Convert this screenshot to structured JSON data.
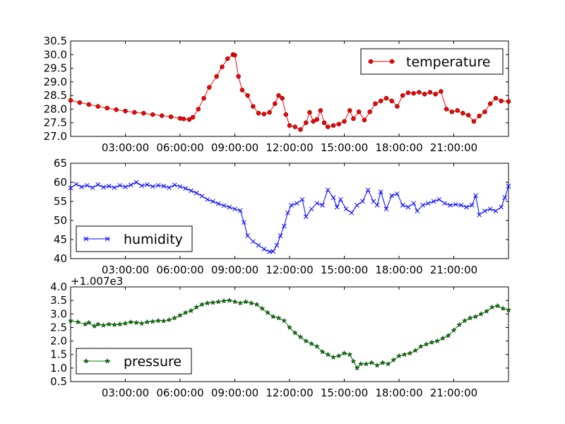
{
  "chart_data": [
    {
      "type": "line",
      "x_ticks": [
        "03:00:00",
        "06:00:00",
        "09:00:00",
        "12:00:00",
        "15:00:00",
        "18:00:00",
        "21:00:00"
      ],
      "x_tick_hours": [
        3,
        6,
        9,
        12,
        15,
        18,
        21
      ],
      "x_range_hours": [
        0,
        24
      ],
      "ylim": [
        27.0,
        30.5
      ],
      "y_ticks": [
        "27.0",
        "27.5",
        "28.0",
        "28.5",
        "29.0",
        "29.5",
        "30.0",
        "30.5"
      ],
      "legend_position": "upper-right",
      "series": [
        {
          "name": "temperature",
          "color": "#ff0000",
          "marker": "circle",
          "points": [
            [
              0.0,
              28.32
            ],
            [
              0.5,
              28.24
            ],
            [
              1.0,
              28.17
            ],
            [
              1.5,
              28.1
            ],
            [
              2.0,
              28.04
            ],
            [
              2.5,
              27.98
            ],
            [
              3.0,
              27.93
            ],
            [
              3.5,
              27.88
            ],
            [
              4.0,
              27.85
            ],
            [
              4.5,
              27.8
            ],
            [
              5.0,
              27.76
            ],
            [
              5.5,
              27.72
            ],
            [
              6.0,
              27.66
            ],
            [
              6.2,
              27.64
            ],
            [
              6.5,
              27.62
            ],
            [
              6.7,
              27.7
            ],
            [
              7.0,
              28.0
            ],
            [
              7.3,
              28.4
            ],
            [
              7.6,
              28.8
            ],
            [
              8.0,
              29.2
            ],
            [
              8.3,
              29.55
            ],
            [
              8.6,
              29.85
            ],
            [
              8.9,
              30.0
            ],
            [
              9.0,
              29.98
            ],
            [
              9.2,
              29.2
            ],
            [
              9.4,
              28.7
            ],
            [
              9.7,
              28.5
            ],
            [
              10.0,
              28.1
            ],
            [
              10.3,
              27.85
            ],
            [
              10.6,
              27.82
            ],
            [
              10.9,
              27.88
            ],
            [
              11.2,
              28.2
            ],
            [
              11.4,
              28.5
            ],
            [
              11.6,
              28.4
            ],
            [
              11.8,
              27.8
            ],
            [
              12.0,
              27.4
            ],
            [
              12.3,
              27.35
            ],
            [
              12.6,
              27.25
            ],
            [
              12.9,
              27.5
            ],
            [
              13.1,
              27.88
            ],
            [
              13.3,
              27.55
            ],
            [
              13.5,
              27.62
            ],
            [
              13.7,
              27.95
            ],
            [
              13.9,
              27.5
            ],
            [
              14.1,
              27.35
            ],
            [
              14.4,
              27.4
            ],
            [
              14.7,
              27.45
            ],
            [
              15.0,
              27.55
            ],
            [
              15.3,
              27.95
            ],
            [
              15.5,
              27.65
            ],
            [
              15.8,
              27.9
            ],
            [
              16.1,
              27.6
            ],
            [
              16.4,
              27.9
            ],
            [
              16.7,
              28.2
            ],
            [
              17.0,
              28.3
            ],
            [
              17.3,
              28.4
            ],
            [
              17.6,
              28.3
            ],
            [
              17.9,
              28.1
            ],
            [
              18.2,
              28.5
            ],
            [
              18.5,
              28.6
            ],
            [
              18.8,
              28.58
            ],
            [
              19.1,
              28.62
            ],
            [
              19.4,
              28.55
            ],
            [
              19.7,
              28.62
            ],
            [
              20.0,
              28.55
            ],
            [
              20.3,
              28.65
            ],
            [
              20.6,
              28.0
            ],
            [
              20.9,
              27.9
            ],
            [
              21.2,
              27.95
            ],
            [
              21.5,
              27.85
            ],
            [
              21.8,
              27.78
            ],
            [
              22.1,
              27.55
            ],
            [
              22.4,
              27.75
            ],
            [
              22.7,
              27.9
            ],
            [
              23.0,
              28.2
            ],
            [
              23.3,
              28.4
            ],
            [
              23.6,
              28.3
            ],
            [
              24.0,
              28.28
            ]
          ]
        }
      ]
    },
    {
      "type": "line",
      "x_ticks": [
        "03:00:00",
        "06:00:00",
        "09:00:00",
        "12:00:00",
        "15:00:00",
        "18:00:00",
        "21:00:00"
      ],
      "x_tick_hours": [
        3,
        6,
        9,
        12,
        15,
        18,
        21
      ],
      "x_range_hours": [
        0,
        24
      ],
      "ylim": [
        40,
        65
      ],
      "y_ticks": [
        "40",
        "45",
        "50",
        "55",
        "60",
        "65"
      ],
      "legend_position": "lower-left",
      "series": [
        {
          "name": "humidity",
          "color": "#0000ff",
          "marker": "x",
          "points": [
            [
              0.0,
              58.5
            ],
            [
              0.3,
              59.5
            ],
            [
              0.6,
              58.8
            ],
            [
              0.9,
              59.2
            ],
            [
              1.2,
              58.6
            ],
            [
              1.5,
              59.4
            ],
            [
              1.8,
              58.7
            ],
            [
              2.1,
              59.0
            ],
            [
              2.4,
              58.6
            ],
            [
              2.7,
              59.2
            ],
            [
              3.0,
              58.8
            ],
            [
              3.3,
              59.3
            ],
            [
              3.6,
              60.0
            ],
            [
              3.9,
              59.1
            ],
            [
              4.2,
              59.4
            ],
            [
              4.5,
              58.9
            ],
            [
              4.8,
              59.2
            ],
            [
              5.1,
              59.0
            ],
            [
              5.4,
              58.6
            ],
            [
              5.7,
              59.3
            ],
            [
              6.0,
              58.9
            ],
            [
              6.3,
              58.4
            ],
            [
              6.6,
              57.8
            ],
            [
              6.9,
              57.2
            ],
            [
              7.2,
              56.4
            ],
            [
              7.5,
              55.5
            ],
            [
              7.8,
              55.0
            ],
            [
              8.1,
              54.4
            ],
            [
              8.4,
              53.9
            ],
            [
              8.7,
              53.5
            ],
            [
              9.0,
              53.0
            ],
            [
              9.3,
              52.6
            ],
            [
              9.5,
              49.5
            ],
            [
              9.7,
              46.0
            ],
            [
              10.0,
              44.5
            ],
            [
              10.3,
              43.5
            ],
            [
              10.6,
              42.5
            ],
            [
              10.9,
              41.8
            ],
            [
              11.1,
              41.9
            ],
            [
              11.3,
              43.5
            ],
            [
              11.5,
              46.0
            ],
            [
              11.7,
              48.5
            ],
            [
              11.9,
              52.0
            ],
            [
              12.1,
              54.0
            ],
            [
              12.4,
              54.5
            ],
            [
              12.7,
              55.5
            ],
            [
              12.9,
              51.0
            ],
            [
              13.2,
              53.0
            ],
            [
              13.5,
              54.5
            ],
            [
              13.8,
              54.0
            ],
            [
              14.1,
              58.0
            ],
            [
              14.4,
              56.0
            ],
            [
              14.6,
              53.5
            ],
            [
              14.8,
              55.5
            ],
            [
              15.1,
              53.0
            ],
            [
              15.4,
              52.0
            ],
            [
              15.7,
              54.0
            ],
            [
              16.0,
              55.0
            ],
            [
              16.3,
              58.0
            ],
            [
              16.6,
              55.0
            ],
            [
              16.8,
              54.0
            ],
            [
              17.0,
              57.5
            ],
            [
              17.3,
              53.0
            ],
            [
              17.6,
              56.5
            ],
            [
              17.9,
              57.0
            ],
            [
              18.2,
              54.0
            ],
            [
              18.5,
              53.5
            ],
            [
              18.8,
              54.5
            ],
            [
              19.0,
              52.5
            ],
            [
              19.3,
              54.0
            ],
            [
              19.6,
              54.5
            ],
            [
              19.9,
              55.0
            ],
            [
              20.2,
              55.5
            ],
            [
              20.5,
              54.5
            ],
            [
              20.8,
              54.0
            ],
            [
              21.1,
              54.2
            ],
            [
              21.4,
              54.0
            ],
            [
              21.7,
              53.5
            ],
            [
              22.0,
              54.0
            ],
            [
              22.2,
              56.5
            ],
            [
              22.4,
              51.5
            ],
            [
              22.7,
              52.5
            ],
            [
              23.0,
              53.0
            ],
            [
              23.3,
              52.5
            ],
            [
              23.6,
              53.5
            ],
            [
              23.8,
              56.0
            ],
            [
              24.0,
              59.0
            ]
          ]
        }
      ]
    },
    {
      "type": "line",
      "x_ticks": [
        "03:00:00",
        "06:00:00",
        "09:00:00",
        "12:00:00",
        "15:00:00",
        "18:00:00",
        "21:00:00"
      ],
      "x_tick_hours": [
        3,
        6,
        9,
        12,
        15,
        18,
        21
      ],
      "x_range_hours": [
        0,
        24
      ],
      "ylim": [
        0.5,
        4.0
      ],
      "y_ticks": [
        "0.5",
        "1.0",
        "1.5",
        "2.0",
        "2.5",
        "3.0",
        "3.5",
        "4.0"
      ],
      "y_offset_text": "+1.007e3",
      "legend_position": "lower-left",
      "series": [
        {
          "name": "pressure",
          "color": "#008000",
          "marker": "star",
          "points": [
            [
              0.0,
              2.75
            ],
            [
              0.4,
              2.7
            ],
            [
              0.8,
              2.62
            ],
            [
              1.0,
              2.68
            ],
            [
              1.3,
              2.55
            ],
            [
              1.5,
              2.62
            ],
            [
              1.8,
              2.58
            ],
            [
              2.1,
              2.62
            ],
            [
              2.4,
              2.6
            ],
            [
              2.7,
              2.62
            ],
            [
              3.0,
              2.65
            ],
            [
              3.3,
              2.7
            ],
            [
              3.6,
              2.68
            ],
            [
              3.9,
              2.65
            ],
            [
              4.2,
              2.7
            ],
            [
              4.5,
              2.72
            ],
            [
              4.8,
              2.75
            ],
            [
              5.1,
              2.74
            ],
            [
              5.4,
              2.78
            ],
            [
              5.7,
              2.85
            ],
            [
              6.0,
              2.95
            ],
            [
              6.3,
              3.05
            ],
            [
              6.6,
              3.12
            ],
            [
              6.9,
              3.25
            ],
            [
              7.2,
              3.35
            ],
            [
              7.5,
              3.4
            ],
            [
              7.8,
              3.42
            ],
            [
              8.1,
              3.45
            ],
            [
              8.4,
              3.48
            ],
            [
              8.7,
              3.5
            ],
            [
              9.0,
              3.45
            ],
            [
              9.3,
              3.4
            ],
            [
              9.6,
              3.45
            ],
            [
              9.9,
              3.4
            ],
            [
              10.2,
              3.35
            ],
            [
              10.5,
              3.2
            ],
            [
              10.8,
              3.05
            ],
            [
              11.1,
              2.9
            ],
            [
              11.4,
              2.85
            ],
            [
              11.7,
              2.75
            ],
            [
              12.0,
              2.5
            ],
            [
              12.3,
              2.3
            ],
            [
              12.6,
              2.15
            ],
            [
              12.9,
              2.0
            ],
            [
              13.2,
              1.9
            ],
            [
              13.5,
              1.8
            ],
            [
              13.8,
              1.6
            ],
            [
              14.1,
              1.5
            ],
            [
              14.4,
              1.4
            ],
            [
              14.7,
              1.45
            ],
            [
              15.0,
              1.55
            ],
            [
              15.3,
              1.5
            ],
            [
              15.5,
              1.25
            ],
            [
              15.7,
              1.0
            ],
            [
              15.9,
              1.15
            ],
            [
              16.2,
              1.15
            ],
            [
              16.5,
              1.2
            ],
            [
              16.8,
              1.1
            ],
            [
              17.1,
              1.2
            ],
            [
              17.4,
              1.15
            ],
            [
              17.7,
              1.3
            ],
            [
              18.0,
              1.45
            ],
            [
              18.3,
              1.5
            ],
            [
              18.6,
              1.55
            ],
            [
              18.9,
              1.65
            ],
            [
              19.2,
              1.8
            ],
            [
              19.5,
              1.88
            ],
            [
              19.8,
              1.95
            ],
            [
              20.1,
              2.0
            ],
            [
              20.4,
              2.1
            ],
            [
              20.7,
              2.2
            ],
            [
              21.0,
              2.4
            ],
            [
              21.3,
              2.6
            ],
            [
              21.6,
              2.75
            ],
            [
              21.9,
              2.85
            ],
            [
              22.2,
              2.9
            ],
            [
              22.5,
              3.0
            ],
            [
              22.8,
              3.1
            ],
            [
              23.1,
              3.25
            ],
            [
              23.4,
              3.3
            ],
            [
              23.7,
              3.2
            ],
            [
              24.0,
              3.15
            ]
          ]
        }
      ]
    }
  ]
}
